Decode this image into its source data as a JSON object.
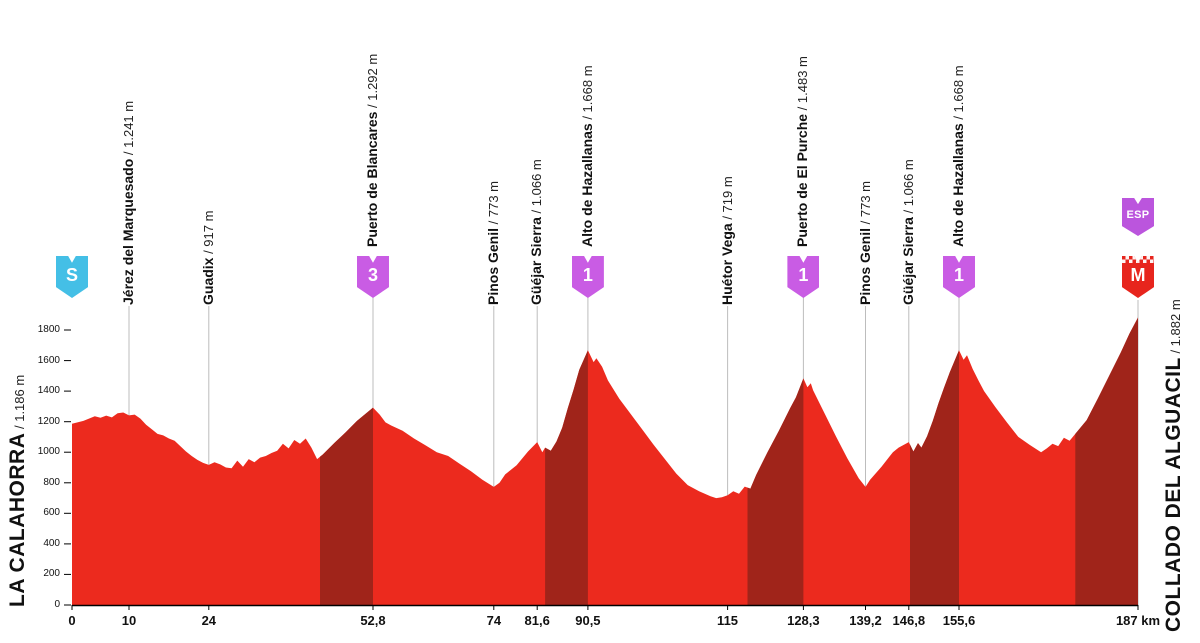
{
  "separator": " / ",
  "colors": {
    "profile_red": "#ec2a1e",
    "climb_dark": "#a0241a",
    "start_badge": "#44bfe6",
    "cat_badge": "#c95ce4",
    "esp_badge": "#bb55dd",
    "finish_badge": "#e7251d",
    "waypoint_line": "#bdbdbd",
    "axis": "#000000"
  },
  "start_label": {
    "name": "LA CALAHORRA",
    "altitude": "1.186 m"
  },
  "finish_label": {
    "name": "COLLADO DEL ALGUACIL",
    "altitude": "1.882 m"
  },
  "start_badge": {
    "label": "S"
  },
  "finish_badges": {
    "esp": "ESP",
    "meta": "M"
  },
  "waypoints": [
    {
      "km": 10,
      "name": "Jérez del Marquesado",
      "altitude": "1.241 m",
      "badge": null
    },
    {
      "km": 24,
      "name": "Guadix",
      "altitude": "917 m",
      "badge": null
    },
    {
      "km": 52.8,
      "name": "Puerto de Blancares",
      "altitude": "1.292 m",
      "badge": "3"
    },
    {
      "km": 74,
      "name": "Pinos Genil",
      "altitude": "773 m",
      "badge": null
    },
    {
      "km": 81.6,
      "name": "Güéjar Sierra",
      "altitude": "1.066 m",
      "badge": null
    },
    {
      "km": 90.5,
      "name": "Alto de Hazallanas",
      "altitude": "1.668 m",
      "badge": "1"
    },
    {
      "km": 115,
      "name": "Huétor Vega",
      "altitude": "719 m",
      "badge": null
    },
    {
      "km": 128.3,
      "name": "Puerto de El Purche",
      "altitude": "1.483 m",
      "badge": "1"
    },
    {
      "km": 139.2,
      "name": "Pinos Genil",
      "altitude": "773 m",
      "badge": null
    },
    {
      "km": 146.8,
      "name": "Güéjar Sierra",
      "altitude": "1.066 m",
      "badge": null
    },
    {
      "km": 155.6,
      "name": "Alto de Hazallanas",
      "altitude": "1.668 m",
      "badge": "1"
    }
  ],
  "x_axis": {
    "ticks": [
      {
        "km": 0,
        "label": "0"
      },
      {
        "km": 10,
        "label": "10"
      },
      {
        "km": 24,
        "label": "24"
      },
      {
        "km": 52.8,
        "label": "52,8"
      },
      {
        "km": 74,
        "label": "74"
      },
      {
        "km": 81.6,
        "label": "81,6"
      },
      {
        "km": 90.5,
        "label": "90,5"
      },
      {
        "km": 115,
        "label": "115"
      },
      {
        "km": 128.3,
        "label": "128,3"
      },
      {
        "km": 139.2,
        "label": "139,2"
      },
      {
        "km": 146.8,
        "label": "146,8"
      },
      {
        "km": 155.6,
        "label": "155,6"
      },
      {
        "km": 187,
        "label": "187 km"
      }
    ]
  },
  "y_axis": {
    "ticks": [
      0,
      200,
      400,
      600,
      800,
      1000,
      1200,
      1400,
      1600,
      1800
    ],
    "max_tick": 1800
  },
  "chart_data": {
    "type": "area",
    "title": "",
    "xlabel": "km",
    "ylabel": "m",
    "xlim": [
      0,
      187
    ],
    "ylim": [
      0,
      1950
    ],
    "grid": false,
    "start_elevation_m": 1186,
    "finish_elevation_m": 1882,
    "profile": [
      [
        0,
        1186
      ],
      [
        2,
        1205
      ],
      [
        4,
        1235
      ],
      [
        5,
        1225
      ],
      [
        6,
        1240
      ],
      [
        7,
        1228
      ],
      [
        8,
        1255
      ],
      [
        9,
        1260
      ],
      [
        10,
        1241
      ],
      [
        11,
        1246
      ],
      [
        12,
        1220
      ],
      [
        13,
        1180
      ],
      [
        14,
        1150
      ],
      [
        15,
        1120
      ],
      [
        16,
        1110
      ],
      [
        17,
        1090
      ],
      [
        18,
        1075
      ],
      [
        19,
        1040
      ],
      [
        20,
        1005
      ],
      [
        21,
        975
      ],
      [
        22,
        950
      ],
      [
        23,
        930
      ],
      [
        24,
        917
      ],
      [
        25,
        935
      ],
      [
        26,
        920
      ],
      [
        27,
        900
      ],
      [
        28,
        895
      ],
      [
        29,
        945
      ],
      [
        30,
        905
      ],
      [
        31,
        955
      ],
      [
        32,
        935
      ],
      [
        33,
        965
      ],
      [
        34,
        975
      ],
      [
        35,
        995
      ],
      [
        36,
        1010
      ],
      [
        37,
        1055
      ],
      [
        38,
        1025
      ],
      [
        39,
        1080
      ],
      [
        40,
        1055
      ],
      [
        41,
        1090
      ],
      [
        42,
        1030
      ],
      [
        43,
        955
      ],
      [
        44,
        985
      ],
      [
        46,
        1060
      ],
      [
        48,
        1130
      ],
      [
        50,
        1205
      ],
      [
        52.8,
        1292
      ],
      [
        54,
        1245
      ],
      [
        55,
        1195
      ],
      [
        56,
        1175
      ],
      [
        58,
        1140
      ],
      [
        60,
        1090
      ],
      [
        62,
        1045
      ],
      [
        64,
        1000
      ],
      [
        66,
        975
      ],
      [
        68,
        925
      ],
      [
        70,
        875
      ],
      [
        72,
        820
      ],
      [
        74,
        773
      ],
      [
        75,
        800
      ],
      [
        76,
        855
      ],
      [
        78,
        915
      ],
      [
        80,
        1005
      ],
      [
        81.6,
        1066
      ],
      [
        82.5,
        1000
      ],
      [
        83,
        1030
      ],
      [
        84,
        1010
      ],
      [
        85,
        1070
      ],
      [
        86,
        1160
      ],
      [
        87,
        1290
      ],
      [
        88,
        1410
      ],
      [
        89,
        1540
      ],
      [
        90.5,
        1668
      ],
      [
        91.5,
        1590
      ],
      [
        92,
        1615
      ],
      [
        93,
        1560
      ],
      [
        94,
        1470
      ],
      [
        96,
        1350
      ],
      [
        98,
        1250
      ],
      [
        100,
        1150
      ],
      [
        102,
        1050
      ],
      [
        104,
        955
      ],
      [
        106,
        860
      ],
      [
        108,
        785
      ],
      [
        110,
        745
      ],
      [
        112,
        712
      ],
      [
        113,
        700
      ],
      [
        114,
        705
      ],
      [
        115,
        719
      ],
      [
        116,
        745
      ],
      [
        117,
        728
      ],
      [
        118,
        775
      ],
      [
        119,
        762
      ],
      [
        120,
        850
      ],
      [
        122,
        1000
      ],
      [
        124,
        1140
      ],
      [
        126,
        1290
      ],
      [
        127,
        1360
      ],
      [
        128.3,
        1483
      ],
      [
        129,
        1425
      ],
      [
        129.6,
        1452
      ],
      [
        130,
        1405
      ],
      [
        131,
        1330
      ],
      [
        132,
        1255
      ],
      [
        134,
        1105
      ],
      [
        136,
        960
      ],
      [
        138,
        830
      ],
      [
        139.2,
        773
      ],
      [
        140,
        820
      ],
      [
        142,
        905
      ],
      [
        144,
        1000
      ],
      [
        145,
        1030
      ],
      [
        146.8,
        1066
      ],
      [
        147.6,
        1005
      ],
      [
        148.4,
        1060
      ],
      [
        149,
        1030
      ],
      [
        150,
        1105
      ],
      [
        151,
        1205
      ],
      [
        152,
        1320
      ],
      [
        153,
        1425
      ],
      [
        154,
        1525
      ],
      [
        155.6,
        1668
      ],
      [
        156.4,
        1605
      ],
      [
        157,
        1635
      ],
      [
        158,
        1545
      ],
      [
        159,
        1470
      ],
      [
        160,
        1400
      ],
      [
        162,
        1295
      ],
      [
        164,
        1195
      ],
      [
        166,
        1100
      ],
      [
        168,
        1048
      ],
      [
        170,
        1000
      ],
      [
        171,
        1025
      ],
      [
        172,
        1055
      ],
      [
        173,
        1040
      ],
      [
        174,
        1095
      ],
      [
        175,
        1075
      ],
      [
        176,
        1120
      ],
      [
        178,
        1210
      ],
      [
        180,
        1355
      ],
      [
        182,
        1505
      ],
      [
        184,
        1655
      ],
      [
        185.5,
        1775
      ],
      [
        187,
        1882
      ]
    ],
    "climb_segments": [
      [
        43.5,
        52.8
      ],
      [
        83,
        90.5
      ],
      [
        118.5,
        128.3
      ],
      [
        147,
        155.6
      ],
      [
        176,
        187
      ]
    ]
  }
}
